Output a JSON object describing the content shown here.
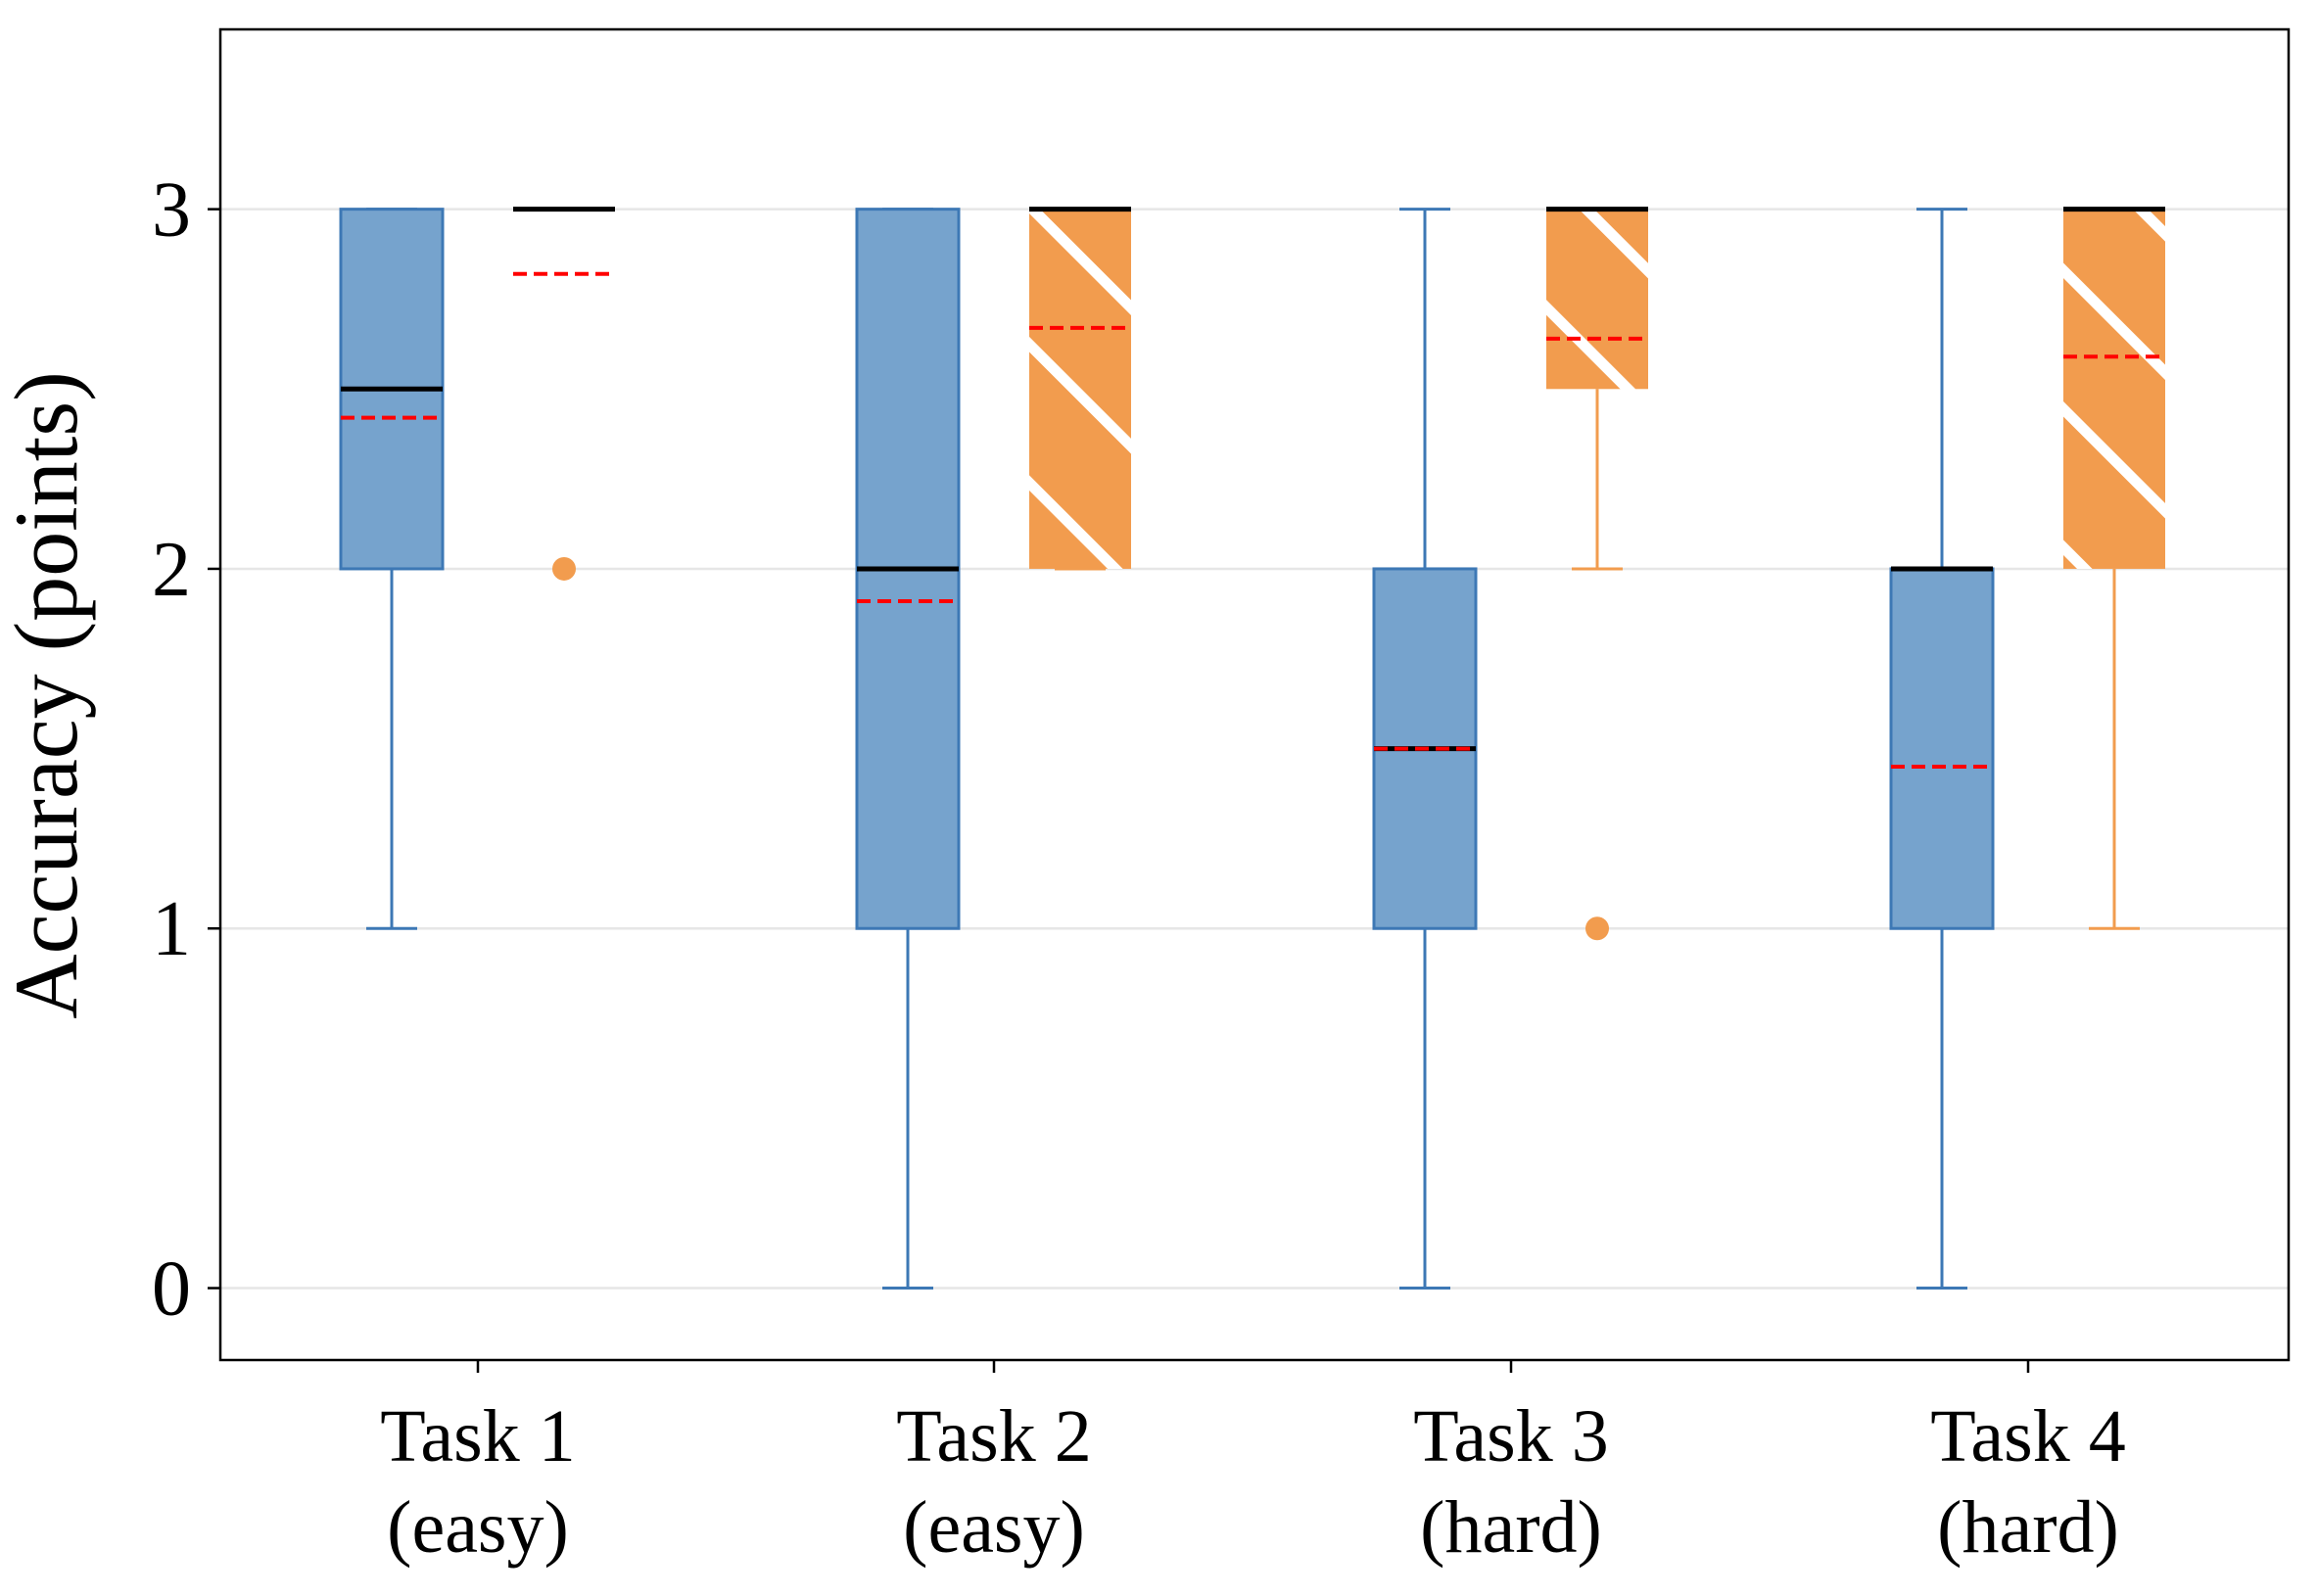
{
  "chart_data": {
    "type": "box",
    "ylabel": "Accuracy (points)",
    "xlabel": "",
    "title": "",
    "ylim": [
      -0.2,
      3.5
    ],
    "yticks": [
      0,
      1,
      2,
      3
    ],
    "grid": "horizontal",
    "categories": [
      {
        "line1": "Task 1",
        "line2": "(easy)"
      },
      {
        "line1": "Task 2",
        "line2": "(easy)"
      },
      {
        "line1": "Task 3",
        "line2": "(hard)"
      },
      {
        "line1": "Task 4",
        "line2": "(hard)"
      }
    ],
    "colors": {
      "blue_fill": "#76a3cd",
      "blue_edge": "#3d78b5",
      "orange_fill": "#f29c4e",
      "orange_edge": "#f29c4e",
      "median": "#000000",
      "mean": "#ff0000",
      "grid": "#e6e6e6"
    },
    "series": [
      {
        "style": "blue",
        "hatch": false,
        "boxes": [
          {
            "whisker_low": 1,
            "q1": 2,
            "median": 2.5,
            "q3": 3,
            "whisker_high": 3,
            "mean": 2.42,
            "outliers": []
          },
          {
            "whisker_low": 0,
            "q1": 1,
            "median": 2,
            "q3": 3,
            "whisker_high": 3,
            "mean": 1.91,
            "outliers": []
          },
          {
            "whisker_low": 0,
            "q1": 1,
            "median": 1.5,
            "q3": 2,
            "whisker_high": 3,
            "mean": 1.5,
            "outliers": []
          },
          {
            "whisker_low": 0,
            "q1": 1,
            "median": 2,
            "q3": 2,
            "whisker_high": 3,
            "mean": 1.45,
            "outliers": []
          }
        ]
      },
      {
        "style": "orange",
        "hatch": true,
        "boxes": [
          {
            "whisker_low": 3,
            "q1": 3,
            "median": 3,
            "q3": 3,
            "whisker_high": 3,
            "mean": 2.82,
            "outliers": [
              2
            ]
          },
          {
            "whisker_low": 2,
            "q1": 2,
            "median": 3,
            "q3": 3,
            "whisker_high": 3,
            "mean": 2.67,
            "outliers": []
          },
          {
            "whisker_low": 2,
            "q1": 2.5,
            "median": 3,
            "q3": 3,
            "whisker_high": 3,
            "mean": 2.64,
            "outliers": [
              1
            ]
          },
          {
            "whisker_low": 1,
            "q1": 2,
            "median": 3,
            "q3": 3,
            "whisker_high": 3,
            "mean": 2.59,
            "outliers": []
          }
        ]
      }
    ]
  }
}
